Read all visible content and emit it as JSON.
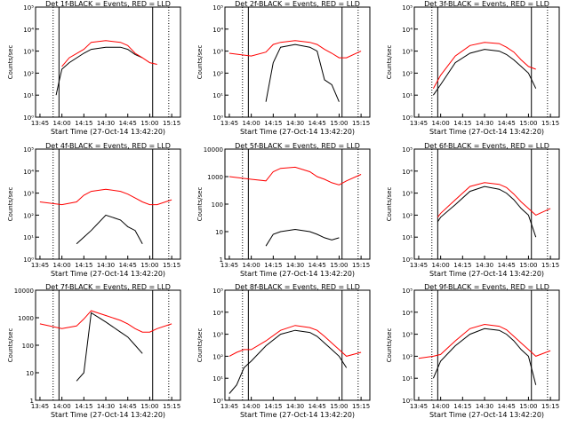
{
  "figure": {
    "background": "#ffffff",
    "colors": {
      "events": "#000000",
      "lld": "#ff0000",
      "axis": "#000000"
    },
    "footer": "Start Time (27-Oct-14 13:42:20)",
    "ylabel": "Counts/sec",
    "xticks": [
      "13:45",
      "14:00",
      "14:15",
      "14:30",
      "14:45",
      "15:00",
      "15:15"
    ]
  },
  "chart_data": [
    {
      "type": "line",
      "title": "Det 1f-BLACK = Events, RED = LLD",
      "ylabel": "Counts/sec",
      "xlabel": "Start Time (27-Oct-14 13:42:20)",
      "xlim": [
        "13:42",
        "15:21"
      ],
      "yscale": "log",
      "ylim": [
        1,
        100000
      ],
      "yticks": [
        "10⁰",
        "10¹",
        "10²",
        "10³",
        "10⁴",
        "10⁵"
      ],
      "markers": {
        "dotted": [
          "13:54",
          "15:13"
        ],
        "solid": [
          "13:58",
          "15:02"
        ]
      },
      "x": [
        "13:50",
        "13:56",
        "13:58",
        "14:00",
        "14:05",
        "14:15",
        "14:20",
        "14:30",
        "14:40",
        "14:45",
        "14:50",
        "14:55",
        "15:00",
        "15:05"
      ],
      "series": [
        {
          "name": "Events",
          "values": [
            null,
            10,
            40,
            150,
            300,
            800,
            1200,
            1500,
            1500,
            1200,
            700,
            500,
            null,
            200
          ]
        },
        {
          "name": "LLD",
          "values": [
            null,
            null,
            null,
            200,
            500,
            1200,
            2500,
            3000,
            2500,
            1800,
            800,
            500,
            300,
            250
          ]
        }
      ]
    },
    {
      "type": "line",
      "title": "Det 2f-BLACK = Events, RED = LLD",
      "ylabel": "Counts/sec",
      "xlabel": "Start Time (27-Oct-14 13:42:20)",
      "xlim": [
        "13:42",
        "15:21"
      ],
      "yscale": "log",
      "ylim": [
        1,
        100000
      ],
      "yticks": [
        "10⁰",
        "10¹",
        "10²",
        "10³",
        "10⁴",
        "10⁵"
      ],
      "markers": {
        "dotted": [
          "13:54",
          "15:13"
        ],
        "solid": [
          "13:58",
          "15:02"
        ]
      },
      "x": [
        "13:45",
        "14:00",
        "14:10",
        "14:15",
        "14:20",
        "14:30",
        "14:40",
        "14:45",
        "14:50",
        "14:55",
        "15:00",
        "15:05",
        "15:15"
      ],
      "series": [
        {
          "name": "Events",
          "values": [
            null,
            null,
            5,
            300,
            1500,
            2000,
            1500,
            1000,
            50,
            30,
            5,
            null,
            null
          ]
        },
        {
          "name": "LLD",
          "values": [
            800,
            600,
            900,
            2000,
            2500,
            3000,
            2500,
            2000,
            1200,
            800,
            500,
            500,
            1000
          ]
        }
      ]
    },
    {
      "type": "line",
      "title": "Det 3f-BLACK = Events, RED = LLD",
      "ylabel": "Counts/sec",
      "xlabel": "Start Time (27-Oct-14 13:42:20)",
      "xlim": [
        "13:42",
        "15:21"
      ],
      "yscale": "log",
      "ylim": [
        1,
        100000
      ],
      "yticks": [
        "10⁰",
        "10¹",
        "10²",
        "10³",
        "10⁴",
        "10⁵"
      ],
      "markers": {
        "dotted": [
          "13:54",
          "15:13"
        ],
        "solid": [
          "13:58",
          "15:02"
        ]
      },
      "x": [
        "13:55",
        "14:00",
        "14:10",
        "14:20",
        "14:30",
        "14:40",
        "14:45",
        "14:50",
        "14:55",
        "15:00",
        "15:05"
      ],
      "series": [
        {
          "name": "Events",
          "values": [
            10,
            30,
            300,
            800,
            1200,
            1000,
            700,
            400,
            200,
            100,
            20
          ]
        },
        {
          "name": "LLD",
          "values": [
            20,
            80,
            600,
            1800,
            2500,
            2200,
            1500,
            900,
            400,
            200,
            150
          ]
        }
      ]
    },
    {
      "type": "line",
      "title": "Det 4f-BLACK = Events, RED = LLD",
      "ylabel": "Counts/sec",
      "xlabel": "Start Time (27-Oct-14 13:42:20)",
      "xlim": [
        "13:42",
        "15:21"
      ],
      "yscale": "log",
      "ylim": [
        1,
        100000
      ],
      "yticks": [
        "10⁰",
        "10¹",
        "10²",
        "10³",
        "10⁴",
        "10⁵"
      ],
      "markers": {
        "dotted": [
          "13:54",
          "15:13"
        ],
        "solid": [
          "13:58",
          "15:02"
        ]
      },
      "x": [
        "13:45",
        "14:00",
        "14:10",
        "14:15",
        "14:20",
        "14:30",
        "14:40",
        "14:45",
        "14:50",
        "14:55",
        "15:00",
        "15:05",
        "15:15"
      ],
      "series": [
        {
          "name": "Events",
          "values": [
            null,
            null,
            5,
            10,
            20,
            100,
            60,
            30,
            20,
            5,
            null,
            null,
            null
          ]
        },
        {
          "name": "LLD",
          "values": [
            400,
            300,
            400,
            800,
            1200,
            1500,
            1200,
            900,
            600,
            400,
            300,
            300,
            500
          ]
        }
      ]
    },
    {
      "type": "line",
      "title": "Det 5f-BLACK = Events, RED = LLD",
      "ylabel": "Counts/sec",
      "xlabel": "Start Time (27-Oct-14 13:42:20)",
      "xlim": [
        "13:42",
        "15:21"
      ],
      "yscale": "log",
      "ylim": [
        1,
        10000
      ],
      "yticks": [
        "1",
        "10",
        "100",
        "1000",
        "10000"
      ],
      "markers": {
        "dotted": [
          "13:54",
          "15:13"
        ],
        "solid": [
          "13:58",
          "15:02"
        ]
      },
      "x": [
        "13:45",
        "14:00",
        "14:10",
        "14:15",
        "14:20",
        "14:30",
        "14:40",
        "14:45",
        "14:50",
        "14:55",
        "15:00",
        "15:05",
        "15:15"
      ],
      "series": [
        {
          "name": "Events",
          "values": [
            null,
            null,
            3,
            8,
            10,
            12,
            10,
            8,
            6,
            5,
            6,
            null,
            null
          ]
        },
        {
          "name": "LLD",
          "values": [
            1000,
            800,
            700,
            1500,
            2000,
            2200,
            1500,
            1000,
            800,
            600,
            500,
            700,
            1200
          ]
        }
      ]
    },
    {
      "type": "line",
      "title": "Det 6f-BLACK = Events, RED = LLD",
      "ylabel": "Counts/sec",
      "xlabel": "Start Time (27-Oct-14 13:42:20)",
      "xlim": [
        "13:42",
        "15:21"
      ],
      "yscale": "log",
      "ylim": [
        1,
        100000
      ],
      "yticks": [
        "10⁰",
        "10¹",
        "10²",
        "10³",
        "10⁴",
        "10⁵"
      ],
      "markers": {
        "dotted": [
          "13:54",
          "15:13"
        ],
        "solid": [
          "13:58",
          "15:02"
        ]
      },
      "x": [
        "13:50",
        "13:58",
        "14:00",
        "14:10",
        "14:20",
        "14:30",
        "14:40",
        "14:45",
        "14:50",
        "14:55",
        "15:00",
        "15:05",
        "15:15"
      ],
      "series": [
        {
          "name": "Events",
          "values": [
            null,
            50,
            80,
            300,
            1200,
            2000,
            1500,
            1000,
            500,
            200,
            100,
            10,
            null
          ]
        },
        {
          "name": "LLD",
          "values": [
            null,
            80,
            120,
            500,
            2000,
            3000,
            2500,
            1800,
            900,
            400,
            200,
            100,
            200
          ]
        }
      ]
    },
    {
      "type": "line",
      "title": "Det 7f-BLACK = Events, RED = LLD",
      "ylabel": "Counts/sec",
      "xlabel": "Start Time (27-Oct-14 13:42:20)",
      "xlim": [
        "13:42",
        "15:21"
      ],
      "yscale": "log",
      "ylim": [
        1,
        10000
      ],
      "yticks": [
        "1",
        "10",
        "100",
        "1000",
        "10000"
      ],
      "markers": {
        "dotted": [
          "13:54",
          "15:13"
        ],
        "solid": [
          "13:58",
          "15:02"
        ]
      },
      "x": [
        "13:45",
        "14:00",
        "14:10",
        "14:15",
        "14:20",
        "14:30",
        "14:40",
        "14:45",
        "14:50",
        "14:55",
        "15:00",
        "15:05",
        "15:15"
      ],
      "series": [
        {
          "name": "Events",
          "values": [
            null,
            null,
            5,
            10,
            1500,
            700,
            300,
            200,
            100,
            50,
            null,
            null,
            null
          ]
        },
        {
          "name": "LLD",
          "values": [
            600,
            400,
            500,
            900,
            1800,
            1200,
            800,
            600,
            400,
            300,
            300,
            400,
            600
          ]
        }
      ]
    },
    {
      "type": "line",
      "title": "Det 8f-BLACK = Events, RED = LLD",
      "ylabel": "Counts/sec",
      "xlabel": "Start Time (27-Oct-14 13:42:20)",
      "xlim": [
        "13:42",
        "15:21"
      ],
      "yscale": "log",
      "ylim": [
        1,
        100000
      ],
      "yticks": [
        "10⁰",
        "10¹",
        "10²",
        "10³",
        "10⁴",
        "10⁵"
      ],
      "markers": {
        "dotted": [
          "13:54",
          "15:13"
        ],
        "solid": [
          "13:58",
          "15:02"
        ]
      },
      "x": [
        "13:45",
        "13:50",
        "13:55",
        "14:00",
        "14:10",
        "14:20",
        "14:30",
        "14:40",
        "14:45",
        "14:50",
        "14:55",
        "15:00",
        "15:05",
        "15:15"
      ],
      "series": [
        {
          "name": "Events",
          "values": [
            2,
            5,
            30,
            60,
            300,
            1000,
            1500,
            1200,
            800,
            400,
            200,
            100,
            30,
            null
          ]
        },
        {
          "name": "LLD",
          "values": [
            100,
            150,
            200,
            200,
            500,
            1500,
            2500,
            2000,
            1500,
            800,
            400,
            200,
            100,
            150
          ]
        }
      ]
    },
    {
      "type": "line",
      "title": "Det 9f-BLACK = Events, RED = LLD",
      "ylabel": "Counts/sec",
      "xlabel": "Start Time (27-Oct-14 13:42:20)",
      "xlim": [
        "13:42",
        "15:21"
      ],
      "yscale": "log",
      "ylim": [
        1,
        100000
      ],
      "yticks": [
        "10⁰",
        "10¹",
        "10²",
        "10³",
        "10⁴",
        "10⁵"
      ],
      "markers": {
        "dotted": [
          "13:54",
          "15:13"
        ],
        "solid": [
          "13:58",
          "15:02"
        ]
      },
      "x": [
        "13:45",
        "13:55",
        "14:00",
        "14:10",
        "14:20",
        "14:30",
        "14:40",
        "14:45",
        "14:50",
        "14:55",
        "15:00",
        "15:05",
        "15:15"
      ],
      "series": [
        {
          "name": "Events",
          "values": [
            null,
            10,
            60,
            300,
            1000,
            1800,
            1500,
            1000,
            500,
            200,
            100,
            5,
            null
          ]
        },
        {
          "name": "LLD",
          "values": [
            80,
            100,
            120,
            500,
            1800,
            2800,
            2300,
            1600,
            800,
            400,
            200,
            100,
            180
          ]
        }
      ]
    }
  ]
}
